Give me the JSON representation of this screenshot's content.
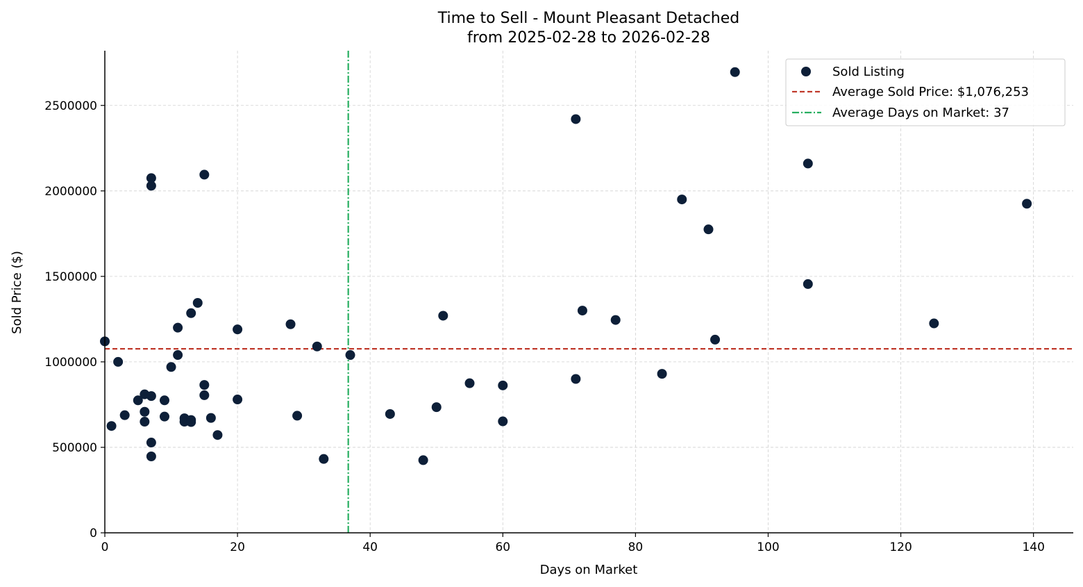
{
  "chart_data": {
    "type": "scatter",
    "title": "Time to Sell - Mount Pleasant Detached",
    "subtitle": "from 2025-02-28 to 2026-02-28",
    "xlabel": "Days on Market",
    "ylabel": "Sold Price ($)",
    "xlim": [
      0,
      146
    ],
    "ylim": [
      0,
      2820000
    ],
    "xticks": [
      0,
      20,
      40,
      60,
      80,
      100,
      120,
      140
    ],
    "yticks": [
      0,
      500000,
      1000000,
      1500000,
      2000000,
      2500000
    ],
    "grid": true,
    "legend_position": "top-right",
    "colors": {
      "points": "#0d1f38",
      "avg_price_line": "#c0392b",
      "avg_days_line": "#27ae60",
      "axis": "#000000",
      "grid": "#d0d0d0"
    },
    "series": [
      {
        "name": "Sold Listing",
        "points": [
          [
            0,
            1120000
          ],
          [
            1,
            625000
          ],
          [
            2,
            1000000
          ],
          [
            3,
            688000
          ],
          [
            5,
            775000
          ],
          [
            6,
            810000
          ],
          [
            6,
            708000
          ],
          [
            6,
            650000
          ],
          [
            7,
            2075000
          ],
          [
            7,
            2030000
          ],
          [
            7,
            800000
          ],
          [
            7,
            528000
          ],
          [
            7,
            447000
          ],
          [
            9,
            775000
          ],
          [
            9,
            680000
          ],
          [
            10,
            970000
          ],
          [
            11,
            1200000
          ],
          [
            11,
            1040000
          ],
          [
            12,
            670000
          ],
          [
            12,
            650000
          ],
          [
            13,
            1285000
          ],
          [
            13,
            660000
          ],
          [
            13,
            648000
          ],
          [
            14,
            1345000
          ],
          [
            15,
            2095000
          ],
          [
            15,
            865000
          ],
          [
            15,
            805000
          ],
          [
            16,
            672000
          ],
          [
            17,
            572000
          ],
          [
            20,
            1190000
          ],
          [
            20,
            780000
          ],
          [
            28,
            1220000
          ],
          [
            29,
            685000
          ],
          [
            32,
            1090000
          ],
          [
            33,
            432000
          ],
          [
            37,
            1040000
          ],
          [
            43,
            695000
          ],
          [
            48,
            425000
          ],
          [
            50,
            735000
          ],
          [
            51,
            1270000
          ],
          [
            55,
            875000
          ],
          [
            60,
            862000
          ],
          [
            60,
            652000
          ],
          [
            71,
            2420000
          ],
          [
            71,
            900000
          ],
          [
            72,
            1300000
          ],
          [
            77,
            1245000
          ],
          [
            84,
            930000
          ],
          [
            87,
            1950000
          ],
          [
            91,
            1775000
          ],
          [
            92,
            1130000
          ],
          [
            95,
            2695000
          ],
          [
            106,
            2160000
          ],
          [
            106,
            1455000
          ],
          [
            125,
            1225000
          ],
          [
            139,
            1925000
          ]
        ]
      }
    ],
    "reference_lines": [
      {
        "name": "Average Sold Price: $1,076,253",
        "orientation": "horizontal",
        "value": 1076253,
        "style": "dashed"
      },
      {
        "name": "Average Days on Market: 37",
        "orientation": "vertical",
        "value": 36.7,
        "style": "dashdot"
      }
    ],
    "legend": [
      "Sold Listing",
      "Average Sold Price: $1,076,253",
      "Average Days on Market: 37"
    ]
  }
}
